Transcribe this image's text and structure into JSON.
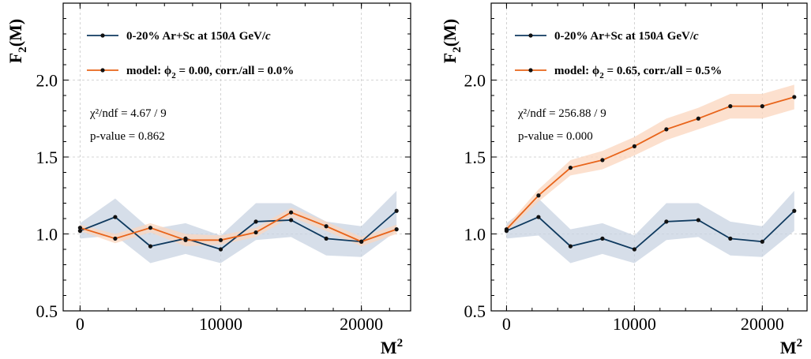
{
  "chart_data": [
    {
      "type": "line",
      "ylabel_main": "F",
      "ylabel_sub": "2",
      "ylabel_tail": "(M)",
      "xlabel_main": "M",
      "xlabel_sup": "2",
      "xlim": [
        -1200,
        23500
      ],
      "ylim": [
        0.5,
        2.5
      ],
      "xticks": [
        0,
        10000,
        20000
      ],
      "xtick_labels": [
        "0",
        "10000",
        "20000"
      ],
      "yticks": [
        0.5,
        1.0,
        1.5,
        2.0
      ],
      "ytick_labels": [
        "0.5",
        "1.0",
        "1.5",
        "2.0"
      ],
      "grid": true,
      "legend": [
        {
          "series": 0,
          "color": "#0f3a5f",
          "t1": "0-20% Ar+Sc at 150",
          "t2": "A",
          "t3": " GeV/",
          "t4": "c"
        },
        {
          "series": 1,
          "color": "#e8641a",
          "t1": "model:  ",
          "t2": "ϕ",
          "t3": "2",
          "t4": " = 0.00,  corr./all = 0.0%"
        }
      ],
      "annotations": [
        "χ²/ndf = 4.67 / 9",
        "p-value = 0.862"
      ],
      "series": [
        {
          "color": "#0f3a5f",
          "band_color": "#c8d3e1",
          "x": [
            0,
            2500,
            5000,
            7500,
            10000,
            12500,
            15000,
            17500,
            20000,
            22500
          ],
          "y": [
            1.02,
            1.11,
            0.92,
            0.97,
            0.9,
            1.08,
            1.09,
            0.97,
            0.95,
            1.15
          ],
          "err": [
            0.05,
            0.12,
            0.11,
            0.1,
            0.09,
            0.12,
            0.11,
            0.11,
            0.1,
            0.13
          ]
        },
        {
          "color": "#e8641a",
          "band_color": "#fbd5bd",
          "x": [
            0,
            2500,
            5000,
            7500,
            10000,
            12500,
            15000,
            17500,
            20000,
            22500
          ],
          "y": [
            1.04,
            0.97,
            1.04,
            0.96,
            0.96,
            1.01,
            1.14,
            1.05,
            0.95,
            1.03
          ],
          "err": [
            0.02,
            0.03,
            0.03,
            0.04,
            0.03,
            0.03,
            0.03,
            0.03,
            0.03,
            0.03
          ]
        }
      ]
    },
    {
      "type": "line",
      "ylabel_main": "F",
      "ylabel_sub": "2",
      "ylabel_tail": "(M)",
      "xlabel_main": "M",
      "xlabel_sup": "2",
      "xlim": [
        -1200,
        23500
      ],
      "ylim": [
        0.5,
        2.5
      ],
      "xticks": [
        0,
        10000,
        20000
      ],
      "xtick_labels": [
        "0",
        "10000",
        "20000"
      ],
      "yticks": [
        0.5,
        1.0,
        1.5,
        2.0
      ],
      "ytick_labels": [
        "0.5",
        "1.0",
        "1.5",
        "2.0"
      ],
      "grid": true,
      "legend": [
        {
          "series": 0,
          "color": "#0f3a5f",
          "t1": "0-20% Ar+Sc at 150",
          "t2": "A",
          "t3": " GeV/",
          "t4": "c"
        },
        {
          "series": 1,
          "color": "#e8641a",
          "t1": "model:  ",
          "t2": "ϕ",
          "t3": "2",
          "t4": " = 0.65,  corr./all = 0.5%"
        }
      ],
      "annotations": [
        "χ²/ndf = 256.88 / 9",
        "p-value = 0.000"
      ],
      "series": [
        {
          "color": "#0f3a5f",
          "band_color": "#c8d3e1",
          "x": [
            0,
            2500,
            5000,
            7500,
            10000,
            12500,
            15000,
            17500,
            20000,
            22500
          ],
          "y": [
            1.02,
            1.11,
            0.92,
            0.97,
            0.9,
            1.08,
            1.09,
            0.97,
            0.95,
            1.15
          ],
          "err": [
            0.05,
            0.12,
            0.11,
            0.1,
            0.09,
            0.12,
            0.11,
            0.11,
            0.1,
            0.13
          ]
        },
        {
          "color": "#e8641a",
          "band_color": "#fbd5bd",
          "x": [
            0,
            2500,
            5000,
            7500,
            10000,
            12500,
            15000,
            17500,
            20000,
            22500
          ],
          "y": [
            1.03,
            1.25,
            1.43,
            1.48,
            1.57,
            1.68,
            1.75,
            1.83,
            1.83,
            1.89
          ],
          "err": [
            0.02,
            0.04,
            0.05,
            0.06,
            0.06,
            0.07,
            0.07,
            0.08,
            0.08,
            0.08
          ]
        }
      ]
    }
  ]
}
